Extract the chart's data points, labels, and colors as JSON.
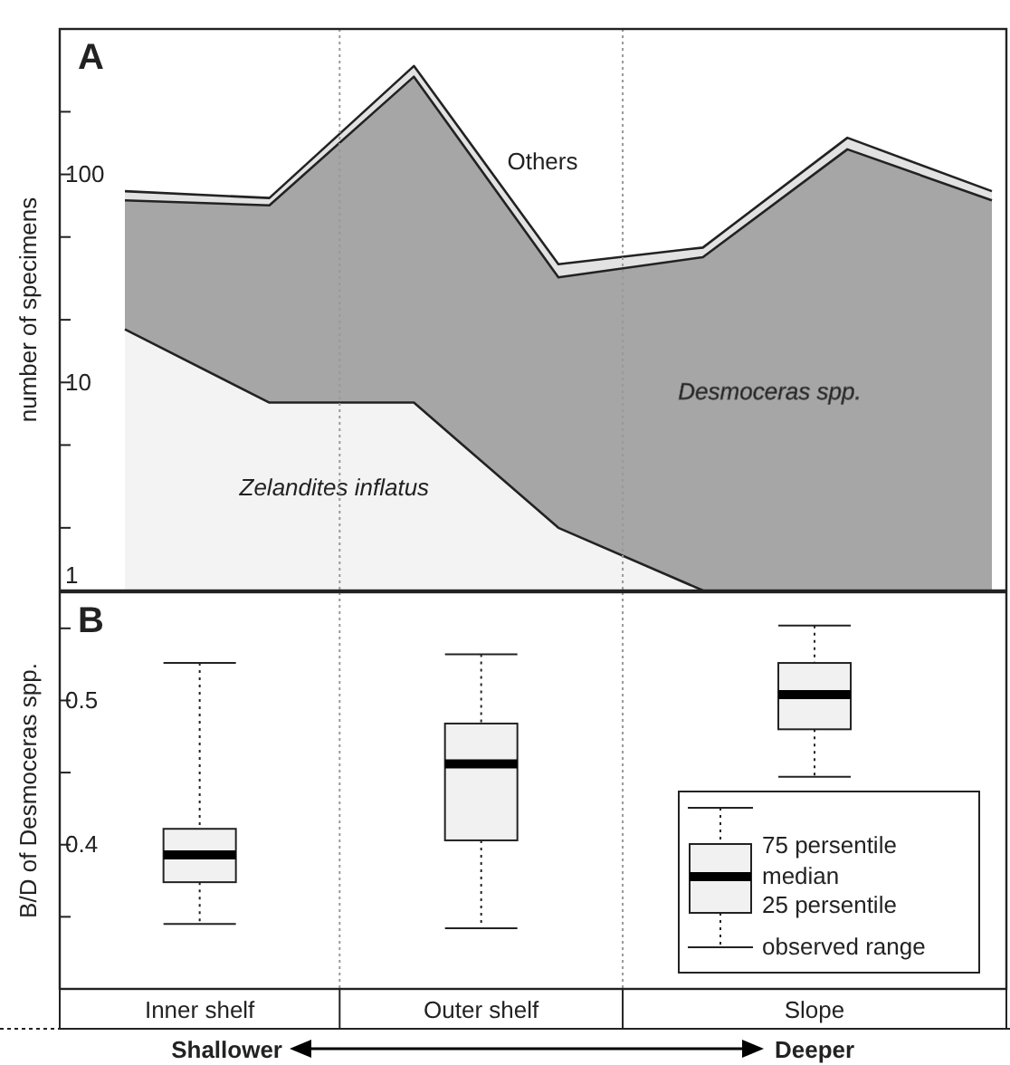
{
  "chart_data": [
    {
      "type": "area",
      "title": "A",
      "ylabel": "number of specimens",
      "stacked": true,
      "log": "y",
      "categories": [
        null,
        null,
        null,
        null,
        null,
        null,
        null
      ],
      "series": [
        {
          "name": "Zelandites inflatus",
          "color": "#f3f3f3",
          "values": [
            18,
            8,
            8,
            2,
            1,
            null,
            null
          ]
        },
        {
          "name": "Desmoceras spp.",
          "color": "#a6a6a6",
          "values": [
            57,
            63,
            287,
            30,
            39,
            132,
            75
          ]
        },
        {
          "name": "Others",
          "color": "#e2e2e2",
          "values": [
            8,
            6,
            37,
            5,
            4.5,
            18,
            8
          ]
        }
      ],
      "ylim": [
        1,
        500
      ],
      "yticks": [
        1,
        {
          "value": 2,
          "label": null
        },
        {
          "value": 5,
          "label": null
        },
        10,
        {
          "value": 20,
          "label": null
        },
        {
          "value": 50,
          "label": null
        },
        100,
        {
          "value": 200,
          "label": null
        }
      ],
      "tick_labels": "y"
    },
    {
      "type": "box",
      "title": "B",
      "ylabel": "B/D of Desmoceras spp.",
      "categories": [
        "Inner shelf",
        "Outer shelf",
        "Slope"
      ],
      "boxes": [
        {
          "low": 0.345,
          "q1": 0.374,
          "median": 0.393,
          "q3": 0.411,
          "high": 0.526
        },
        {
          "low": 0.342,
          "q1": 0.403,
          "median": 0.456,
          "q3": 0.484,
          "high": 0.532
        },
        {
          "low": 0.447,
          "q1": 0.48,
          "median": 0.504,
          "q3": 0.526,
          "high": 0.552
        }
      ],
      "ylim": [
        0.3,
        0.575
      ],
      "yticks": [
        {
          "value": 0.35,
          "label": null
        },
        0.4,
        {
          "value": 0.45,
          "label": null
        },
        0.5,
        {
          "value": 0.55,
          "label": null
        }
      ],
      "annotations": [
        "75 persentile",
        "median",
        "25 persentile",
        "observed range",
        "Shallower",
        "Deeper"
      ]
    }
  ]
}
